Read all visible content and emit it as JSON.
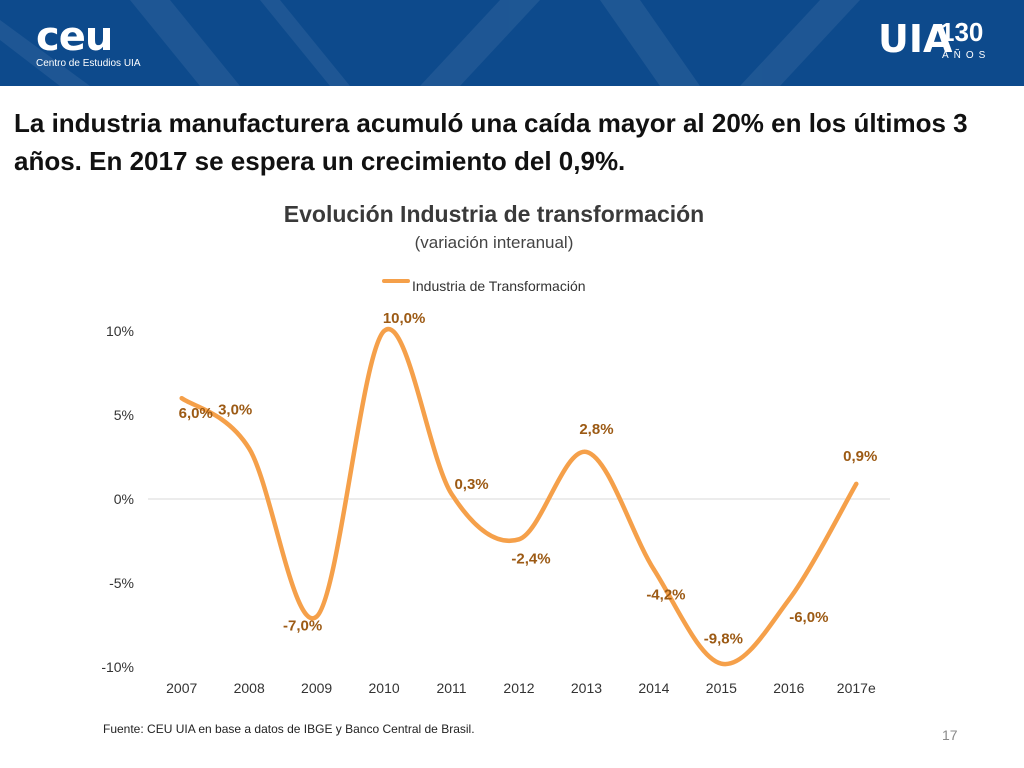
{
  "header": {
    "logo_left": "ceu",
    "logo_left_sub": "Centro de Estudios UIA",
    "logo_right": "UIA",
    "logo_right_number": "130",
    "logo_right_sub": "AÑOS",
    "color_bg": "#0d4a8c"
  },
  "headline": "La industria manufacturera acumuló una caída mayor al 20% en los últimos 3 años. En 2017 se espera un crecimiento del 0,9%.",
  "chart_data": {
    "type": "line",
    "title": "Evolución Industria de transformación",
    "subtitle": "(variación interanual)",
    "legend": {
      "label": "Industria de Transformación",
      "position": "top"
    },
    "categories": [
      "2007",
      "2008",
      "2009",
      "2010",
      "2011",
      "2012",
      "2013",
      "2014",
      "2015",
      "2016",
      "2017e"
    ],
    "series": [
      {
        "name": "Industria de Transformación",
        "values": [
          6.0,
          3.0,
          -7.0,
          10.0,
          0.3,
          -2.4,
          2.8,
          -4.2,
          -9.8,
          -6.0,
          0.9
        ],
        "labels": [
          "6,0%",
          "3,0%",
          "-7,0%",
          "10,0%",
          "0,3%",
          "-2,4%",
          "2,8%",
          "-4,2%",
          "-9,8%",
          "-6,0%",
          "0,9%"
        ],
        "color": "#f5a04a",
        "label_color": "#9c5a14",
        "smooth": true
      }
    ],
    "y_ticks": [
      10,
      5,
      0,
      -5,
      -10
    ],
    "y_tick_labels": [
      "10%",
      "5%",
      "0%",
      "-5%",
      "-10%"
    ],
    "ylim": [
      -10,
      10
    ],
    "zero_line": true,
    "xlabel": "",
    "ylabel": ""
  },
  "source": "Fuente: CEU UIA en base a datos de IBGE y Banco Central de Brasil.",
  "page_number": "17"
}
